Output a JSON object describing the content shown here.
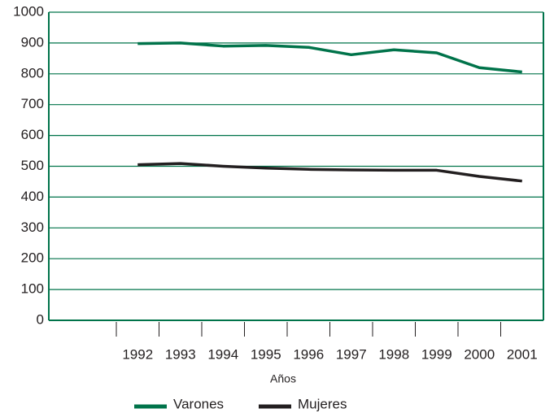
{
  "chart_data": {
    "type": "line",
    "x_label": "Años",
    "categories": [
      "1992",
      "1993",
      "1994",
      "1995",
      "1996",
      "1997",
      "1998",
      "1999",
      "2000",
      "2001"
    ],
    "series": [
      {
        "name": "Varones",
        "color": "#00734a",
        "values": [
          898,
          900,
          890,
          892,
          886,
          862,
          878,
          868,
          820,
          806
        ]
      },
      {
        "name": "Mujeres",
        "color": "#231f20",
        "values": [
          505,
          509,
          500,
          494,
          490,
          488,
          487,
          487,
          467,
          452
        ]
      }
    ],
    "ylim": [
      0,
      1000
    ],
    "yticks": [
      0,
      100,
      200,
      300,
      400,
      500,
      600,
      700,
      800,
      900,
      1000
    ],
    "grid": true,
    "grid_color": "#00734a",
    "legend": "bottom"
  }
}
